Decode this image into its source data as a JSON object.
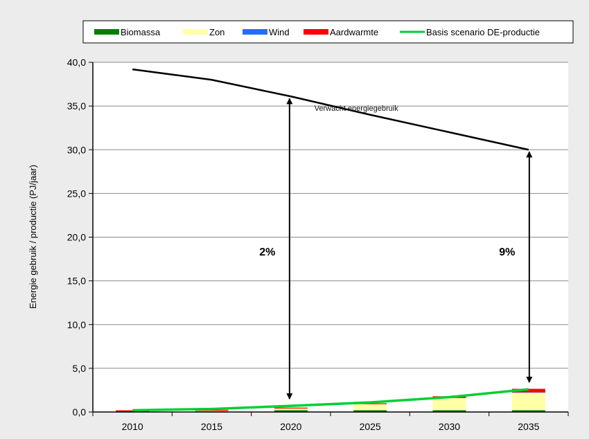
{
  "chart_data": {
    "type": "bar",
    "subtype": "stacked-bar-with-lines",
    "x": [
      2010,
      2015,
      2020,
      2025,
      2030,
      2035
    ],
    "categories": [
      "2010",
      "2015",
      "2020",
      "2025",
      "2030",
      "2035"
    ],
    "ylabel": "Energie gebruik / productie  (PJ/jaar)",
    "xlabel": "",
    "title": "",
    "ylim": [
      0,
      40
    ],
    "yticks": [
      "0,0",
      "5,0",
      "10,0",
      "15,0",
      "20,0",
      "25,0",
      "30,0",
      "35,0",
      "40,0"
    ],
    "grid": true,
    "legend_position": "top",
    "series": [
      {
        "name": "Biomassa",
        "color": "#008000",
        "kind": "bar",
        "values": [
          0.1,
          0.1,
          0.2,
          0.2,
          0.2,
          0.2
        ]
      },
      {
        "name": "Zon",
        "color": "#ffffa6",
        "kind": "bar",
        "values": [
          0.0,
          0.05,
          0.2,
          0.7,
          1.4,
          2.0
        ]
      },
      {
        "name": "Wind",
        "color": "#1f6fff",
        "kind": "bar",
        "values": [
          0.0,
          0.0,
          0.0,
          0.0,
          0.0,
          0.05
        ]
      },
      {
        "name": "Aardwarmte",
        "color": "#ff0000",
        "kind": "bar",
        "values": [
          0.1,
          0.1,
          0.1,
          0.1,
          0.2,
          0.4
        ]
      },
      {
        "name": "Basis scenario DE-productie",
        "color": "#00d030",
        "kind": "line",
        "values": [
          0.2,
          0.35,
          0.7,
          1.1,
          1.7,
          2.6
        ]
      }
    ],
    "lines": [
      {
        "label": "Verwacht energiegebruik",
        "color": "#000000",
        "values": [
          39.2,
          38.0,
          36.1,
          34.0,
          32.0,
          30.0
        ]
      }
    ],
    "annotations": [
      {
        "text": "2%",
        "x": 2020,
        "from": 36.1,
        "to": 0.7
      },
      {
        "text": "9%",
        "x": 2035,
        "from": 30.0,
        "to": 2.6
      }
    ]
  }
}
